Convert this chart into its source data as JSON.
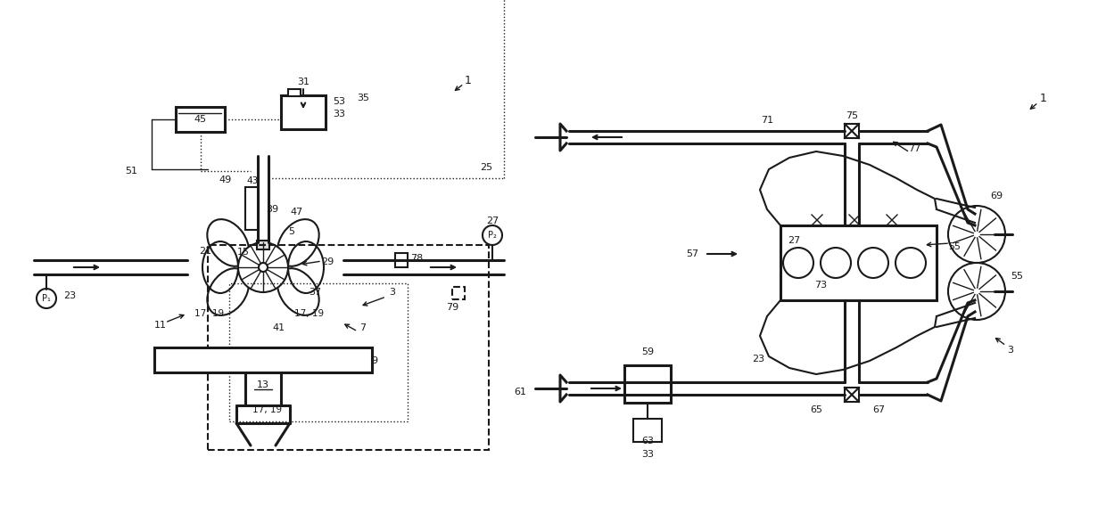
{
  "bg_color": "#ffffff",
  "lc": "#1a1a1a",
  "lw": 1.5,
  "lw2": 2.2,
  "lw3": 1.0
}
